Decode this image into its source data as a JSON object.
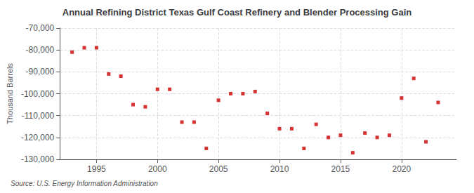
{
  "chart_data": {
    "type": "scatter",
    "title": "Annual Refining District Texas Gulf Coast Refinery and Blender Processing Gain",
    "ylabel": "Thousand Barrels",
    "source": "Source: U.S. Energy Information Administration",
    "x": [
      1993,
      1994,
      1995,
      1996,
      1997,
      1998,
      1999,
      2000,
      2001,
      2002,
      2003,
      2004,
      2005,
      2006,
      2007,
      2008,
      2009,
      2010,
      2011,
      2012,
      2013,
      2014,
      2015,
      2016,
      2017,
      2018,
      2019,
      2020,
      2021,
      2022,
      2023
    ],
    "values": [
      -81000,
      -79000,
      -79000,
      -91000,
      -92000,
      -105000,
      -106000,
      -98000,
      -98000,
      -113000,
      -113000,
      -125000,
      -103000,
      -100000,
      -100000,
      -99000,
      -109000,
      -116000,
      -116000,
      -125000,
      -114000,
      -120000,
      -119000,
      -127000,
      -118000,
      -120000,
      -119000,
      -102000,
      -93000,
      -122000,
      -104000
    ],
    "color": "#cc0000",
    "marker": "square",
    "xlim": [
      1992.0,
      2024.5
    ],
    "xticks": [
      1995,
      2000,
      2005,
      2010,
      2015,
      2020
    ],
    "ylim": [
      -130000,
      -70000
    ],
    "yticks": [
      {
        "value": -130000,
        "label": "-130,000"
      },
      {
        "value": -120000,
        "label": "-120,000"
      },
      {
        "value": -110000,
        "label": "-110,000"
      },
      {
        "value": -100000,
        "label": "-100,000"
      },
      {
        "value": -90000,
        "label": "-90,000"
      },
      {
        "value": -80000,
        "label": "-80,000"
      },
      {
        "value": -70000,
        "label": "-70,000"
      }
    ],
    "grid": true
  }
}
